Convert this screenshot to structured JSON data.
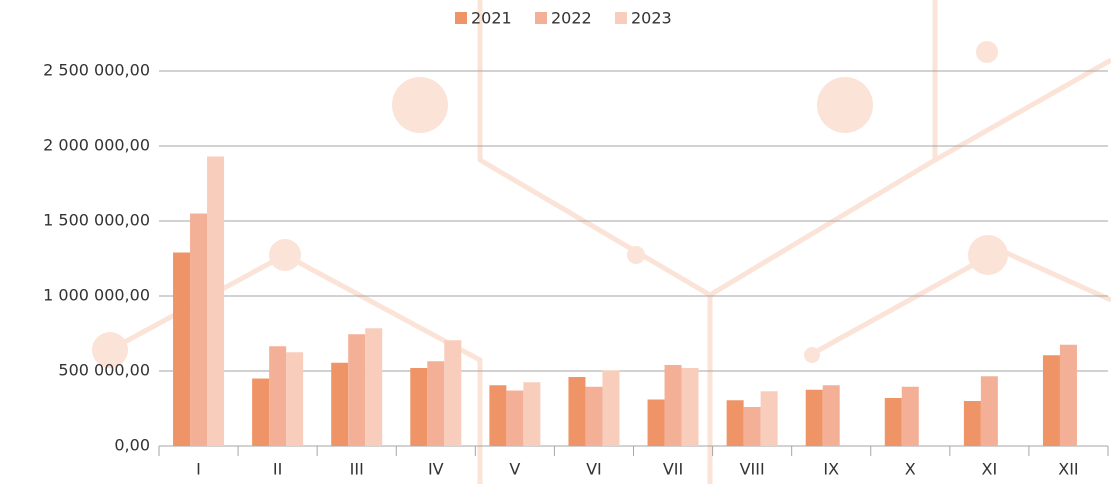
{
  "chart_data": {
    "type": "bar",
    "categories": [
      "I",
      "II",
      "III",
      "IV",
      "V",
      "VI",
      "VII",
      "VIII",
      "IX",
      "X",
      "XI",
      "XII"
    ],
    "series": [
      {
        "name": "2021",
        "color": "#ef9466",
        "values": [
          1290000,
          450000,
          555000,
          520000,
          405000,
          460000,
          310000,
          305000,
          375000,
          320000,
          300000,
          605000
        ]
      },
      {
        "name": "2022",
        "color": "#f4b097",
        "values": [
          1550000,
          665000,
          745000,
          565000,
          370000,
          395000,
          540000,
          260000,
          405000,
          395000,
          465000,
          675000
        ]
      },
      {
        "name": "2023",
        "color": "#f8cdbc",
        "values": [
          1930000,
          625000,
          785000,
          705000,
          425000,
          505000,
          520000,
          365000,
          null,
          null,
          null,
          null
        ]
      }
    ],
    "ylim": [
      0,
      2500000
    ],
    "yticks": [
      {
        "value": 0,
        "label": "0,00"
      },
      {
        "value": 500000,
        "label": "500 000,00"
      },
      {
        "value": 1000000,
        "label": "1 000 000,00"
      },
      {
        "value": 1500000,
        "label": "1 500 000,00"
      },
      {
        "value": 2000000,
        "label": "2 000 000,00"
      },
      {
        "value": 2500000,
        "label": "2 500 000,00"
      }
    ],
    "grid": true,
    "legend": "top"
  }
}
